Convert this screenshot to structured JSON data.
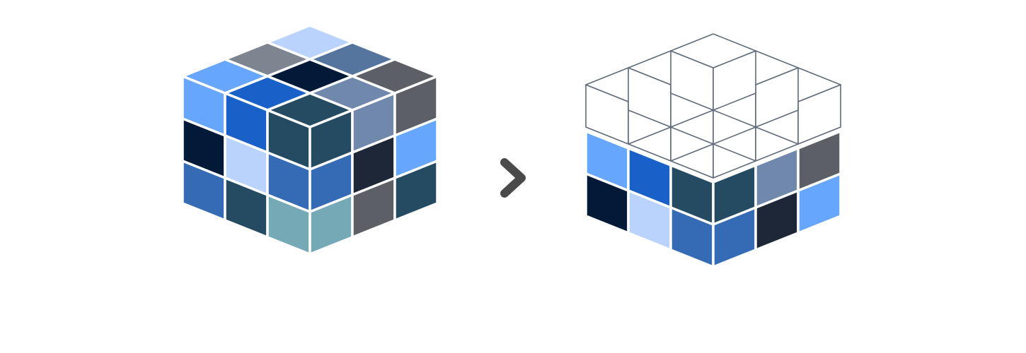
{
  "palette": {
    "sky": "#b9d3fd",
    "slate_gray": "#7d8590",
    "steel": "#56759e",
    "cornflower": "#66a6fc",
    "navy": "#021a38",
    "charcoal": "#5c6066",
    "royal": "#1961c8",
    "gray_blue": "#7088ab",
    "teal_dark": "#244b62",
    "cobalt": "#356ab5",
    "ink": "#1e2737",
    "aqua_gray": "#76a9b6",
    "outline": "#5f6b7a",
    "arrow": "#4a4a4a"
  },
  "cube_colored": {
    "top": [
      [
        "#b9d3fd",
        "#56759e",
        "#5c6066"
      ],
      [
        "#7d8590",
        "#021a38",
        "#7088ab"
      ],
      [
        "#66a6fc",
        "#1961c8",
        "#244b62"
      ]
    ],
    "left": [
      [
        "#66a6fc",
        "#1961c8",
        "#244b62"
      ],
      [
        "#021a38",
        "#b9d3fd",
        "#356ab5"
      ],
      [
        "#356ab5",
        "#244b62",
        "#76a9b6"
      ]
    ],
    "right": [
      [
        "#244b62",
        "#7088ab",
        "#5c6066"
      ],
      [
        "#356ab5",
        "#1e2737",
        "#66a6fc"
      ],
      [
        "#76a9b6",
        "#5c6066",
        "#244b62"
      ]
    ]
  },
  "cube_exploded": {
    "left": [
      [
        "#66a6fc",
        "#1961c8",
        "#244b62"
      ],
      [
        "#021a38",
        "#b9d3fd",
        "#356ab5"
      ]
    ],
    "right": [
      [
        "#244b62",
        "#7088ab",
        "#5c6066"
      ],
      [
        "#356ab5",
        "#1e2737",
        "#66a6fc"
      ]
    ]
  },
  "arrow_icon": "chevron-right-icon"
}
